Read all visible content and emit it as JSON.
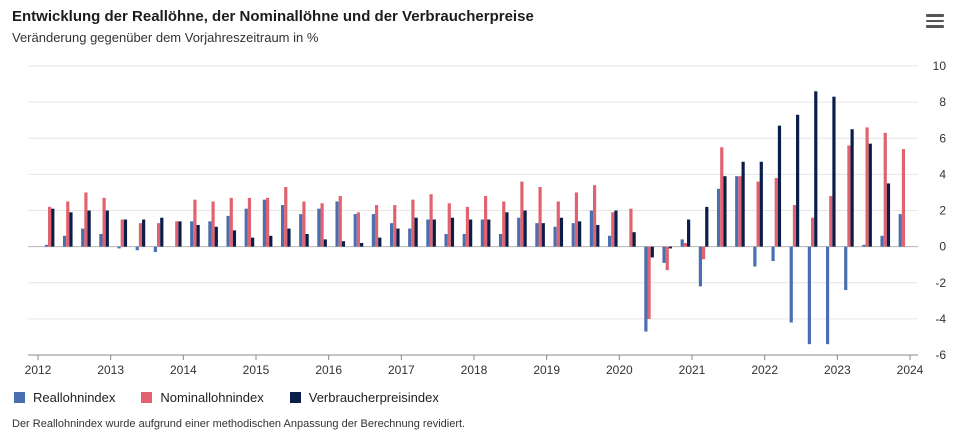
{
  "header": {
    "title": "Entwicklung der Reallöhne, der Nominallöhne und der Verbraucherpreise",
    "subtitle": "Veränderung gegenüber dem Vorjahreszeitraum in %",
    "menu_icon": "hamburger-menu-icon"
  },
  "legend": [
    {
      "label": "Reallohnindex",
      "color": "#4a6fb0"
    },
    {
      "label": "Nominallohnindex",
      "color": "#e0636f"
    },
    {
      "label": "Verbraucherpreisindex",
      "color": "#0b1d4a"
    }
  ],
  "footnote": "Der Reallohnindex wurde aufgrund einer methodischen Anpassung der Berechnung revidiert.",
  "chart_data": {
    "type": "bar",
    "x_ticks": [
      "2012",
      "2013",
      "2014",
      "2015",
      "2016",
      "2017",
      "2018",
      "2019",
      "2020",
      "2021",
      "2022",
      "2023",
      "2024"
    ],
    "y_ticks": [
      "-6",
      "-4",
      "-2",
      "0",
      "2",
      "4",
      "6",
      "8",
      "10"
    ],
    "ylim": [
      -6,
      10
    ],
    "grid": true,
    "legend_position": "bottom-left",
    "categories": [
      "2012 Q1",
      "2012 Q2",
      "2012 Q3",
      "2012 Q4",
      "2013 Q1",
      "2013 Q2",
      "2013 Q3",
      "2013 Q4",
      "2014 Q1",
      "2014 Q2",
      "2014 Q3",
      "2014 Q4",
      "2015 Q1",
      "2015 Q2",
      "2015 Q3",
      "2015 Q4",
      "2016 Q1",
      "2016 Q2",
      "2016 Q3",
      "2016 Q4",
      "2017 Q1",
      "2017 Q2",
      "2017 Q3",
      "2017 Q4",
      "2018 Q1",
      "2018 Q2",
      "2018 Q3",
      "2018 Q4",
      "2019 Q1",
      "2019 Q2",
      "2019 Q3",
      "2019 Q4",
      "2020 Q1",
      "2020 Q2",
      "2020 Q3",
      "2020 Q4",
      "2021 Q1",
      "2021 Q2",
      "2021 Q3",
      "2021 Q4",
      "2022 Q1",
      "2022 Q2",
      "2022 Q3",
      "2022 Q4",
      "2023 Q1",
      "2023 Q2",
      "2023 Q3",
      "2023 Q4"
    ],
    "series": [
      {
        "name": "Reallohnindex",
        "color": "#4a6fb0",
        "values": [
          0.1,
          0.6,
          1.0,
          0.7,
          -0.1,
          -0.2,
          -0.3,
          0.0,
          1.4,
          1.4,
          1.7,
          2.1,
          2.6,
          2.3,
          1.8,
          2.1,
          2.5,
          1.8,
          1.8,
          1.3,
          1.0,
          1.5,
          0.7,
          0.7,
          1.5,
          0.7,
          1.6,
          1.3,
          1.1,
          1.3,
          2.0,
          0.6,
          0.0,
          -4.7,
          -0.9,
          0.4,
          -2.2,
          3.2,
          3.9,
          -1.1,
          -0.8,
          -4.2,
          -5.4,
          -5.4,
          -2.4,
          0.1,
          0.6,
          1.8
        ]
      },
      {
        "name": "Nominallohnindex",
        "color": "#e0636f",
        "values": [
          2.2,
          2.5,
          3.0,
          2.7,
          1.5,
          1.3,
          1.3,
          1.4,
          2.6,
          2.5,
          2.7,
          2.7,
          2.7,
          3.3,
          2.5,
          2.4,
          2.8,
          1.9,
          2.3,
          2.3,
          2.6,
          2.9,
          2.4,
          2.2,
          2.8,
          2.5,
          3.6,
          3.3,
          2.5,
          3.0,
          3.4,
          1.9,
          2.1,
          -4.0,
          -1.3,
          0.2,
          -0.7,
          5.5,
          3.9,
          3.6,
          3.8,
          2.3,
          1.6,
          2.8,
          5.6,
          6.6,
          6.3,
          5.4
        ]
      },
      {
        "name": "Verbraucherpreisindex",
        "color": "#0b1d4a",
        "values": [
          2.1,
          1.9,
          2.0,
          2.0,
          1.5,
          1.5,
          1.6,
          1.4,
          1.2,
          1.1,
          0.9,
          0.5,
          0.6,
          1.0,
          0.7,
          0.4,
          0.3,
          0.2,
          0.5,
          1.0,
          1.6,
          1.5,
          1.6,
          1.5,
          1.5,
          1.9,
          2.0,
          1.3,
          1.6,
          1.4,
          1.2,
          2.0,
          0.8,
          -0.6,
          -0.1,
          1.5,
          2.2,
          3.9,
          4.7,
          4.7,
          6.7,
          7.3,
          8.6,
          8.3,
          6.5,
          5.7,
          3.5,
          0.0
        ]
      }
    ]
  }
}
